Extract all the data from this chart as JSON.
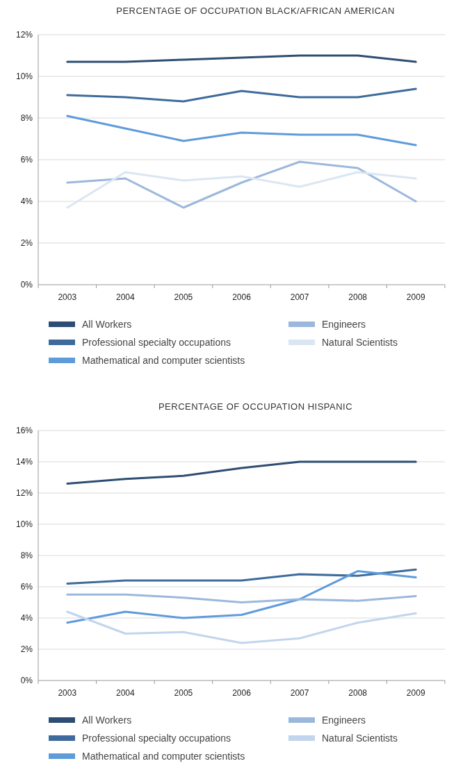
{
  "chart_data": [
    {
      "type": "line",
      "title": "PERCENTAGE OF OCCUPATION BLACK/AFRICAN AMERICAN",
      "categories": [
        "2003",
        "2004",
        "2005",
        "2006",
        "2007",
        "2008",
        "2009"
      ],
      "ylim": [
        0,
        12
      ],
      "yticks": [
        {
          "value": 0,
          "label": "0%"
        },
        {
          "value": 2,
          "label": "2%"
        },
        {
          "value": 4,
          "label": "4%"
        },
        {
          "value": 6,
          "label": "6%"
        },
        {
          "value": 8,
          "label": "8%"
        },
        {
          "value": 10,
          "label": "10%"
        },
        {
          "value": 12,
          "label": "12%"
        }
      ],
      "grid": "y",
      "legend": "bottom",
      "series": [
        {
          "name": "All Workers",
          "color": "#2d4e72",
          "values": [
            10.7,
            10.7,
            10.8,
            10.9,
            11.0,
            11.0,
            10.7
          ]
        },
        {
          "name": "Professional specialty occupations",
          "color": "#3e6b9b",
          "values": [
            9.1,
            9.0,
            8.8,
            9.3,
            9.0,
            9.0,
            9.4
          ]
        },
        {
          "name": "Mathematical and computer scientists",
          "color": "#5e9bdb",
          "values": [
            8.1,
            7.5,
            6.9,
            7.3,
            7.2,
            7.2,
            6.7
          ]
        },
        {
          "name": "Engineers",
          "color": "#9bb8dc",
          "values": [
            4.9,
            5.1,
            3.7,
            4.9,
            5.9,
            5.6,
            4.0
          ]
        },
        {
          "name": "Natural Scientists",
          "color": "#dbe6f3",
          "values": [
            3.7,
            5.4,
            5.0,
            5.2,
            4.7,
            5.4,
            5.1
          ]
        }
      ]
    },
    {
      "type": "line",
      "title": "PERCENTAGE OF OCCUPATION HISPANIC",
      "categories": [
        "2003",
        "2004",
        "2005",
        "2006",
        "2007",
        "2008",
        "2009"
      ],
      "ylim": [
        0,
        16
      ],
      "yticks": [
        {
          "value": 0,
          "label": "0%"
        },
        {
          "value": 2,
          "label": "2%"
        },
        {
          "value": 4,
          "label": "4%"
        },
        {
          "value": 6,
          "label": "6%"
        },
        {
          "value": 8,
          "label": "8%"
        },
        {
          "value": 10,
          "label": "10%"
        },
        {
          "value": 12,
          "label": "12%"
        },
        {
          "value": 14,
          "label": "14%"
        },
        {
          "value": 16,
          "label": "16%"
        }
      ],
      "grid": "y",
      "legend": "bottom",
      "series": [
        {
          "name": "All Workers",
          "color": "#2d4e72",
          "values": [
            12.6,
            12.9,
            13.1,
            13.6,
            14.0,
            14.0,
            14.0
          ]
        },
        {
          "name": "Professional specialty occupations",
          "color": "#3e6b9b",
          "values": [
            6.2,
            6.4,
            6.4,
            6.4,
            6.8,
            6.7,
            7.1
          ]
        },
        {
          "name": "Mathematical and computer scientists",
          "color": "#5e9bdb",
          "values": [
            3.7,
            4.4,
            4.0,
            4.2,
            5.2,
            7.0,
            6.6
          ]
        },
        {
          "name": "Engineers",
          "color": "#9bb8dc",
          "values": [
            5.5,
            5.5,
            5.3,
            5.0,
            5.2,
            5.1,
            5.4
          ]
        },
        {
          "name": "Natural Scientists",
          "color": "#c2d5ec",
          "values": [
            4.4,
            3.0,
            3.1,
            2.4,
            2.7,
            3.7,
            4.3
          ]
        }
      ]
    }
  ]
}
